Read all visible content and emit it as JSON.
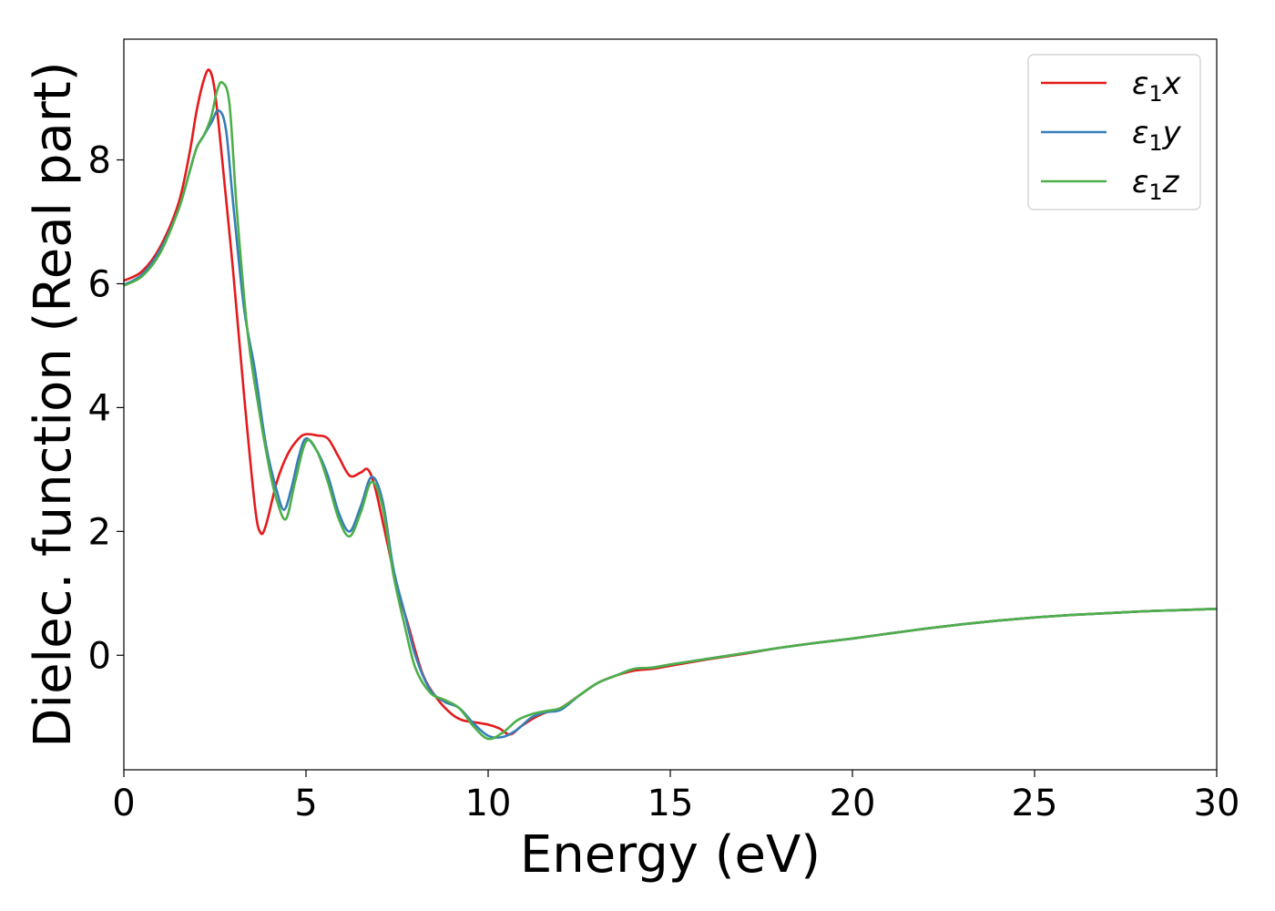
{
  "chart_data": {
    "type": "line",
    "xlabel": "Energy (eV)",
    "ylabel": "Dielec. function (Real part)",
    "xlim": [
      0,
      30
    ],
    "ylim": [
      -1.85,
      9.95
    ],
    "xticks": [
      0,
      5,
      10,
      15,
      20,
      25,
      30
    ],
    "yticks": [
      0,
      2,
      4,
      6,
      8
    ],
    "grid": false,
    "legend_position": "top-right",
    "series": [
      {
        "name": "ε1x",
        "legend_base": "ε",
        "legend_sub": "1",
        "legend_suffix": "x",
        "color": "#e41a1c",
        "x": [
          0,
          0.5,
          1.0,
          1.5,
          1.8,
          2.0,
          2.2,
          2.35,
          2.5,
          2.7,
          3.0,
          3.3,
          3.6,
          3.75,
          3.9,
          4.2,
          4.5,
          4.8,
          5.0,
          5.3,
          5.6,
          5.9,
          6.2,
          6.5,
          6.7,
          6.9,
          7.2,
          7.5,
          7.8,
          8.2,
          8.6,
          9.0,
          9.3,
          9.6,
          10.0,
          10.3,
          10.6,
          10.9,
          11.3,
          11.7,
          12.0,
          12.5,
          13.0,
          13.5,
          14.0,
          14.5,
          15.0,
          16.0,
          17.0,
          18.0,
          19.0,
          20.0,
          21.0,
          22.0,
          23.0,
          24.0,
          25.0,
          26.0,
          27.0,
          28.0,
          29.0,
          30.0
        ],
        "values": [
          6.05,
          6.2,
          6.6,
          7.3,
          8.1,
          8.8,
          9.3,
          9.45,
          9.1,
          8.0,
          6.2,
          4.2,
          2.4,
          1.98,
          2.1,
          2.8,
          3.25,
          3.5,
          3.57,
          3.55,
          3.5,
          3.2,
          2.9,
          2.95,
          3.0,
          2.7,
          1.9,
          1.1,
          0.5,
          -0.3,
          -0.7,
          -0.95,
          -1.05,
          -1.08,
          -1.12,
          -1.18,
          -1.28,
          -1.15,
          -1.0,
          -0.9,
          -0.85,
          -0.65,
          -0.45,
          -0.33,
          -0.25,
          -0.22,
          -0.17,
          -0.07,
          0.02,
          0.12,
          0.2,
          0.27,
          0.35,
          0.43,
          0.5,
          0.56,
          0.61,
          0.65,
          0.68,
          0.71,
          0.73,
          0.75
        ]
      },
      {
        "name": "ε1y",
        "legend_base": "ε",
        "legend_sub": "1",
        "legend_suffix": "y",
        "color": "#377eb8",
        "x": [
          0,
          0.5,
          1.0,
          1.5,
          1.8,
          2.0,
          2.2,
          2.4,
          2.6,
          2.8,
          3.0,
          3.3,
          3.6,
          3.9,
          4.2,
          4.4,
          4.6,
          4.8,
          5.0,
          5.3,
          5.6,
          5.9,
          6.2,
          6.5,
          6.8,
          7.1,
          7.4,
          7.7,
          8.0,
          8.4,
          8.8,
          9.2,
          9.6,
          10.0,
          10.4,
          10.8,
          11.2,
          11.6,
          12.0,
          12.5,
          13.0,
          13.5,
          14.0,
          14.5,
          15.0,
          16.0,
          17.0,
          18.0,
          19.0,
          20.0,
          21.0,
          22.0,
          23.0,
          24.0,
          25.0,
          26.0,
          27.0,
          28.0,
          29.0,
          30.0
        ],
        "values": [
          5.98,
          6.15,
          6.55,
          7.2,
          7.8,
          8.2,
          8.4,
          8.6,
          8.8,
          8.5,
          7.3,
          5.6,
          4.6,
          3.4,
          2.65,
          2.35,
          2.7,
          3.2,
          3.5,
          3.3,
          2.9,
          2.3,
          2.0,
          2.4,
          2.88,
          2.5,
          1.4,
          0.7,
          0.0,
          -0.55,
          -0.75,
          -0.85,
          -1.1,
          -1.3,
          -1.32,
          -1.2,
          -1.0,
          -0.92,
          -0.88,
          -0.65,
          -0.45,
          -0.33,
          -0.22,
          -0.2,
          -0.15,
          -0.06,
          0.03,
          0.12,
          0.2,
          0.27,
          0.35,
          0.43,
          0.5,
          0.56,
          0.61,
          0.65,
          0.68,
          0.71,
          0.73,
          0.75
        ]
      },
      {
        "name": "ε1z",
        "legend_base": "ε",
        "legend_sub": "1",
        "legend_suffix": "z",
        "color": "#4daf4a",
        "x": [
          0,
          0.5,
          1.0,
          1.5,
          1.8,
          2.0,
          2.2,
          2.4,
          2.55,
          2.7,
          2.9,
          3.1,
          3.4,
          3.7,
          4.0,
          4.2,
          4.45,
          4.7,
          5.0,
          5.3,
          5.6,
          5.9,
          6.2,
          6.5,
          6.8,
          7.1,
          7.4,
          7.7,
          8.0,
          8.4,
          8.8,
          9.2,
          9.6,
          10.0,
          10.4,
          10.8,
          11.2,
          11.6,
          12.0,
          12.5,
          13.0,
          13.5,
          14.0,
          14.5,
          15.0,
          16.0,
          17.0,
          18.0,
          19.0,
          20.0,
          21.0,
          22.0,
          23.0,
          24.0,
          25.0,
          26.0,
          27.0,
          28.0,
          29.0,
          30.0
        ],
        "values": [
          5.97,
          6.12,
          6.5,
          7.2,
          7.8,
          8.2,
          8.4,
          8.7,
          9.1,
          9.25,
          8.9,
          7.2,
          5.2,
          4.0,
          3.0,
          2.5,
          2.2,
          2.8,
          3.45,
          3.3,
          2.8,
          2.2,
          1.92,
          2.3,
          2.8,
          2.4,
          1.3,
          0.5,
          -0.2,
          -0.6,
          -0.72,
          -0.85,
          -1.15,
          -1.35,
          -1.25,
          -1.05,
          -0.95,
          -0.9,
          -0.85,
          -0.65,
          -0.45,
          -0.33,
          -0.22,
          -0.2,
          -0.15,
          -0.06,
          0.03,
          0.12,
          0.2,
          0.27,
          0.35,
          0.43,
          0.5,
          0.56,
          0.61,
          0.65,
          0.68,
          0.71,
          0.73,
          0.75
        ]
      }
    ]
  }
}
